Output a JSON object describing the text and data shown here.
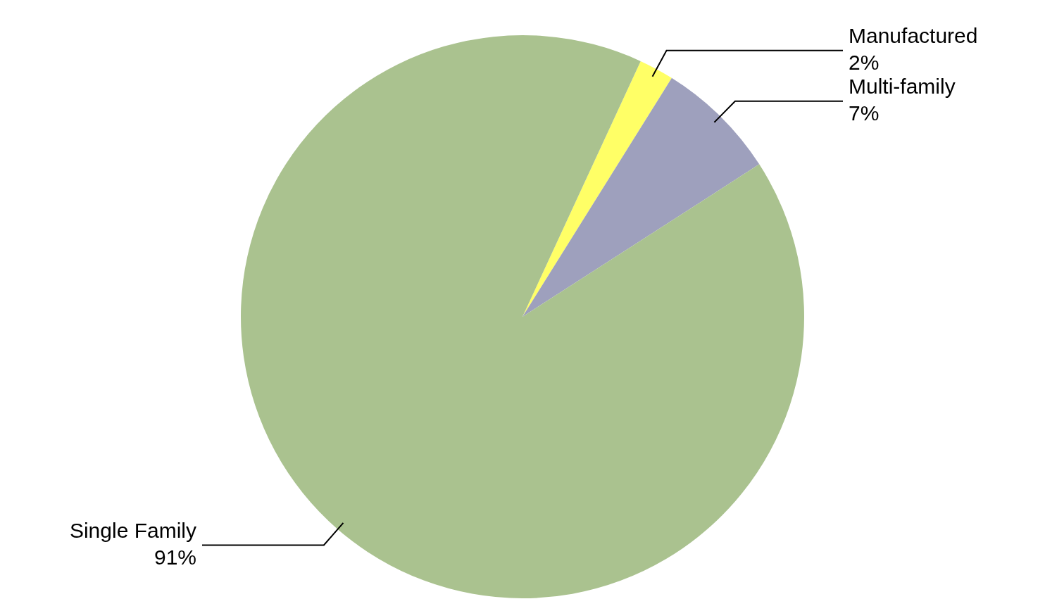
{
  "chart_data": {
    "type": "pie",
    "categories": [
      "Manufactured",
      "Multi-family",
      "Single Family"
    ],
    "values": [
      2,
      7,
      91
    ],
    "value_labels": [
      "2%",
      "7%",
      "91%"
    ],
    "colors": [
      "#ffff66",
      "#9ea0bd",
      "#aac28f"
    ],
    "legend": false
  }
}
